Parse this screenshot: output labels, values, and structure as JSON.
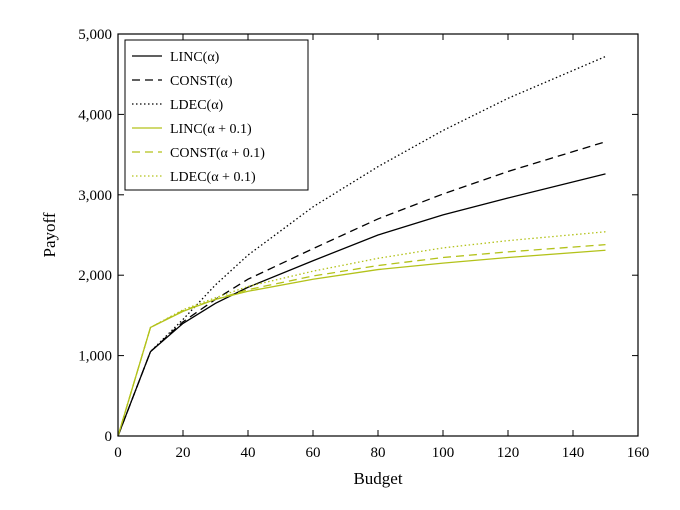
{
  "chart_data": {
    "type": "line",
    "xlabel": "Budget",
    "ylabel": "Payoff",
    "xlim": [
      0,
      160
    ],
    "ylim": [
      0,
      5000
    ],
    "xticks": [
      "0",
      "20",
      "40",
      "60",
      "80",
      "100",
      "120",
      "140",
      "160"
    ],
    "yticks": [
      "0",
      "1,000",
      "2,000",
      "3,000",
      "4,000",
      "5,000"
    ],
    "legend_position": "top-left",
    "x": [
      0,
      10,
      20,
      30,
      40,
      60,
      80,
      100,
      120,
      150
    ],
    "series": [
      {
        "name": "LINC(α)",
        "color": "#000000",
        "dash": "solid",
        "values": [
          0,
          1050,
          1400,
          1650,
          1850,
          2180,
          2500,
          2750,
          2960,
          3260
        ]
      },
      {
        "name": "CONST(α)",
        "color": "#000000",
        "dash": "dashed",
        "values": [
          0,
          1050,
          1420,
          1700,
          1950,
          2330,
          2700,
          3010,
          3290,
          3660
        ]
      },
      {
        "name": "LDEC(α)",
        "color": "#000000",
        "dash": "dotted",
        "values": [
          0,
          1050,
          1450,
          1880,
          2250,
          2850,
          3350,
          3800,
          4200,
          4720
        ]
      },
      {
        "name": "LINC(α + 0.1)",
        "color": "#b3c21a",
        "dash": "solid",
        "values": [
          0,
          1350,
          1550,
          1700,
          1800,
          1950,
          2070,
          2150,
          2220,
          2310
        ]
      },
      {
        "name": "CONST(α + 0.1)",
        "color": "#b3c21a",
        "dash": "dashed",
        "values": [
          0,
          1350,
          1560,
          1700,
          1820,
          1990,
          2120,
          2220,
          2290,
          2380
        ]
      },
      {
        "name": "LDEC(α + 0.1)",
        "color": "#b3c21a",
        "dash": "dotted",
        "values": [
          0,
          1350,
          1570,
          1720,
          1860,
          2050,
          2210,
          2340,
          2430,
          2540
        ]
      }
    ]
  }
}
